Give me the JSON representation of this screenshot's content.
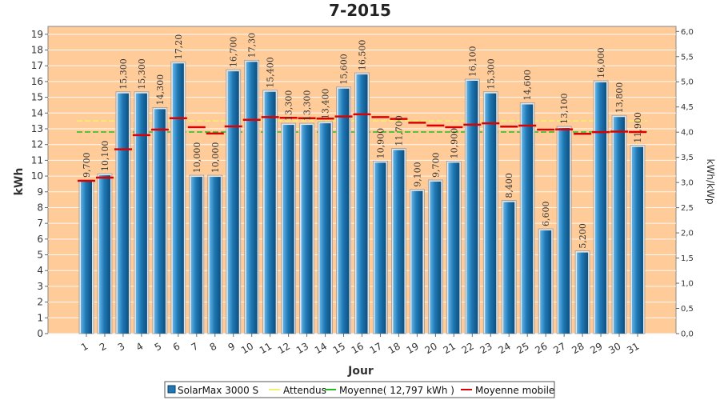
{
  "chart_data": {
    "type": "bar",
    "title": "7-2015",
    "xlabel": "Jour",
    "ylabel": "kWh",
    "y2label": "kWh/kWp",
    "ylim": [
      0,
      19.5
    ],
    "y2lim": [
      0,
      6.1
    ],
    "yticks": [
      "0",
      "1",
      "2",
      "3",
      "4",
      "5",
      "6",
      "7",
      "8",
      "9",
      "10",
      "11",
      "12",
      "13",
      "14",
      "15",
      "16",
      "17",
      "18",
      "19"
    ],
    "y2ticks": [
      "0,0",
      "0,5",
      "1,0",
      "1,5",
      "2,0",
      "2,5",
      "3,0",
      "3,5",
      "4,0",
      "4,5",
      "5,0",
      "5,5",
      "6,0"
    ],
    "categories": [
      "1",
      "2",
      "3",
      "4",
      "5",
      "6",
      "7",
      "8",
      "9",
      "10",
      "11",
      "12",
      "13",
      "14",
      "15",
      "16",
      "17",
      "18",
      "19",
      "20",
      "21",
      "22",
      "23",
      "24",
      "25",
      "26",
      "27",
      "28",
      "29",
      "30",
      "31"
    ],
    "series": [
      {
        "name": "SolarMax 3000 S",
        "kind": "bar",
        "color": "#1f78b4",
        "values": [
          9.7,
          10.1,
          15.3,
          15.3,
          14.3,
          17.2,
          10.0,
          10.0,
          16.7,
          17.3,
          15.4,
          13.3,
          13.3,
          13.4,
          15.6,
          16.5,
          10.9,
          11.7,
          9.1,
          9.7,
          10.9,
          16.1,
          15.3,
          8.4,
          14.6,
          6.6,
          13.1,
          5.2,
          16.0,
          13.8,
          11.9
        ],
        "labels": [
          "9,700",
          "10,100",
          "15,300",
          "15,300",
          "14,300",
          "17,20",
          "10,000",
          "10,000",
          "16,700",
          "17,30",
          "15,400",
          "13,300",
          "13,300",
          "13,400",
          "15,600",
          "16,500",
          "10,900",
          "11,700",
          "9,100",
          "9,700",
          "10,900",
          "16,100",
          "15,300",
          "8,400",
          "14,600",
          "6,600",
          "13,100",
          "5,200",
          "16,000",
          "13,800",
          "11,900"
        ]
      },
      {
        "name": "Attendus",
        "kind": "line",
        "color": "#f2f26a",
        "value": 13.5
      },
      {
        "name": "Moyenne( 12,797 kWh )",
        "kind": "line",
        "color": "#22bb22",
        "value": 12.797
      },
      {
        "name": "Moyenne mobile",
        "kind": "step",
        "color": "#dd0000",
        "values": [
          9.7,
          9.9,
          11.7,
          12.6,
          12.95,
          13.67,
          13.1,
          12.7,
          13.15,
          13.57,
          13.74,
          13.7,
          13.67,
          13.65,
          13.78,
          13.92,
          13.74,
          13.63,
          13.39,
          13.21,
          13.1,
          13.26,
          13.35,
          13.14,
          13.2,
          12.95,
          12.96,
          12.68,
          12.79,
          12.82,
          12.8
        ]
      }
    ],
    "background": "#ffcc99",
    "grid": true,
    "legend": "bottom"
  }
}
